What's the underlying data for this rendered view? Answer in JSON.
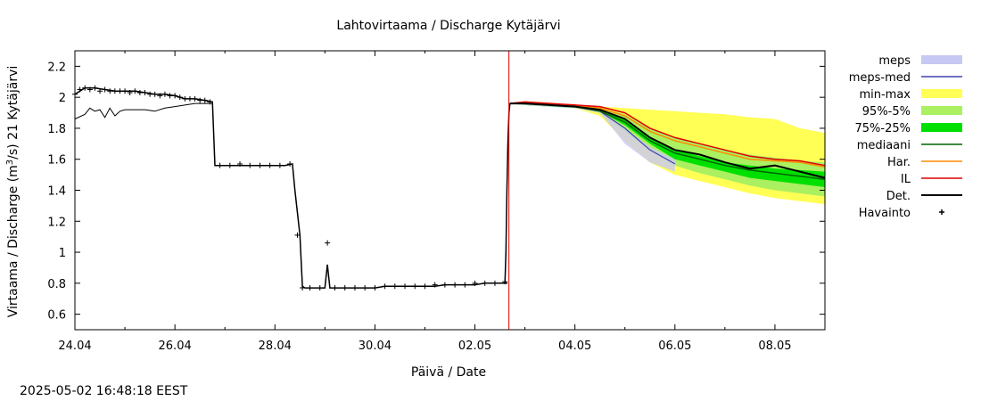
{
  "chart_data": {
    "type": "line",
    "title": "Lahtovirtaama / Discharge  Kytäjärvi",
    "ylabel_parts": {
      "pre": "Virtaama / Discharge (m",
      "sup": "3",
      "post": "/s)  21 Kytäjärvi"
    },
    "xlabel": "Päivä / Date",
    "timestamp": "2025-05-02 16:48:18 EEST",
    "xlim": [
      0,
      15
    ],
    "ylim": [
      0.5,
      2.3
    ],
    "x_unit": "days since 24.04",
    "yticks": [
      0.6,
      0.8,
      1,
      1.2,
      1.4,
      1.6,
      1.8,
      2,
      2.2
    ],
    "ytick_labels": [
      "0.6",
      "0.8",
      "1",
      "1.2",
      "1.4",
      "1.6",
      "1.8",
      "2",
      "2.2"
    ],
    "xticks": [
      0,
      2,
      4,
      6,
      8,
      10,
      12,
      14
    ],
    "xtick_labels": [
      "24.04",
      "26.04",
      "28.04",
      "30.04",
      "02.05",
      "04.05",
      "06.05",
      "08.05"
    ],
    "forecast_start": 8.68,
    "colors": {
      "meps": "#c8c8f5",
      "meps_med": "#4040b0",
      "minmax": "#ffff55",
      "p95_5": "#aaf060",
      "p75_25": "#00e000",
      "median": "#006400",
      "har": "#ff8c00",
      "il": "#e00000",
      "det": "#000000",
      "obs": "#000000",
      "now_line": "#dd0000"
    },
    "legend": [
      {
        "key": "meps",
        "label": "meps",
        "style": "band"
      },
      {
        "key": "meps_med",
        "label": "meps-med",
        "style": "line"
      },
      {
        "key": "minmax",
        "label": "min-max",
        "style": "band"
      },
      {
        "key": "p95_5",
        "label": "95%-5%",
        "style": "band"
      },
      {
        "key": "p75_25",
        "label": "75%-25%",
        "style": "band"
      },
      {
        "key": "median",
        "label": "mediaani",
        "style": "line"
      },
      {
        "key": "har",
        "label": "Har.",
        "style": "line"
      },
      {
        "key": "il",
        "label": "IL",
        "style": "line"
      },
      {
        "key": "det",
        "label": "Det.",
        "style": "thickline"
      },
      {
        "key": "obs",
        "label": "Havainto",
        "style": "plus"
      }
    ],
    "series": {
      "observations": {
        "x": [
          0.0,
          0.2,
          0.4,
          0.6,
          0.8,
          1.0,
          1.2,
          1.4,
          1.6,
          1.8,
          2.0,
          2.2,
          2.4,
          2.6,
          2.75,
          2.8,
          2.9,
          3.0,
          3.2,
          3.4,
          3.6,
          3.8,
          4.0,
          4.2,
          4.35,
          4.4,
          4.5,
          4.55,
          4.6,
          4.8,
          5.0,
          5.05,
          5.1,
          5.2,
          5.4,
          5.6,
          5.8,
          6.0,
          6.2,
          6.4,
          6.6,
          6.8,
          7.0,
          7.2,
          7.4,
          7.6,
          7.8,
          8.0,
          8.2,
          8.4,
          8.6,
          8.65
        ],
        "y": [
          2.02,
          2.06,
          2.06,
          2.05,
          2.04,
          2.04,
          2.04,
          2.03,
          2.02,
          2.02,
          2.01,
          1.99,
          1.99,
          1.98,
          1.97,
          1.56,
          1.56,
          1.56,
          1.56,
          1.56,
          1.56,
          1.56,
          1.56,
          1.56,
          1.57,
          1.4,
          1.11,
          0.78,
          0.77,
          0.77,
          0.77,
          0.92,
          0.77,
          0.77,
          0.77,
          0.77,
          0.77,
          0.77,
          0.78,
          0.78,
          0.78,
          0.78,
          0.78,
          0.78,
          0.79,
          0.79,
          0.79,
          0.79,
          0.8,
          0.8,
          0.8,
          0.8
        ]
      },
      "obs_markers": {
        "x": [
          0.0,
          0.1,
          0.2,
          0.3,
          0.4,
          0.5,
          0.6,
          0.7,
          0.8,
          0.9,
          1.0,
          1.1,
          1.2,
          1.3,
          1.4,
          1.5,
          1.6,
          1.7,
          1.8,
          1.9,
          2.0,
          2.1,
          2.2,
          2.3,
          2.4,
          2.5,
          2.6,
          2.7,
          2.9,
          3.1,
          3.3,
          3.5,
          3.7,
          3.9,
          4.1,
          4.3,
          4.45,
          4.55,
          4.7,
          4.9,
          5.05,
          5.2,
          5.4,
          5.6,
          5.8,
          6.0,
          6.2,
          6.4,
          6.6,
          6.8,
          7.0,
          7.2,
          7.4,
          7.6,
          7.8,
          8.0,
          8.2,
          8.4,
          8.6
        ],
        "y": [
          2.02,
          2.05,
          2.06,
          2.05,
          2.06,
          2.04,
          2.05,
          2.04,
          2.04,
          2.04,
          2.04,
          2.03,
          2.04,
          2.03,
          2.03,
          2.02,
          2.02,
          2.01,
          2.02,
          2.01,
          2.01,
          2.0,
          1.99,
          1.99,
          1.99,
          1.98,
          1.98,
          1.97,
          1.56,
          1.56,
          1.57,
          1.56,
          1.56,
          1.56,
          1.56,
          1.57,
          1.11,
          0.77,
          0.77,
          0.77,
          1.06,
          0.77,
          0.77,
          0.77,
          0.77,
          0.77,
          0.78,
          0.78,
          0.78,
          0.78,
          0.78,
          0.79,
          0.79,
          0.79,
          0.79,
          0.8,
          0.8,
          0.8,
          0.81
        ]
      },
      "history_lower": {
        "x": [
          0.0,
          0.2,
          0.3,
          0.4,
          0.5,
          0.6,
          0.7,
          0.8,
          0.9,
          1.0,
          1.2,
          1.4,
          1.6,
          1.8,
          2.0,
          2.2,
          2.4,
          2.6,
          2.75
        ],
        "y": [
          1.86,
          1.89,
          1.93,
          1.91,
          1.92,
          1.87,
          1.93,
          1.88,
          1.91,
          1.92,
          1.92,
          1.92,
          1.91,
          1.93,
          1.94,
          1.95,
          1.96,
          1.96,
          1.96
        ]
      },
      "rise": {
        "x": [
          8.6,
          8.62,
          8.64,
          8.66,
          8.68,
          8.7
        ],
        "y": [
          0.8,
          1.0,
          1.4,
          1.7,
          1.9,
          1.96
        ]
      },
      "forecast_x": [
        8.7,
        9.0,
        9.5,
        10.0,
        10.5,
        11.0,
        11.5,
        12.0,
        12.5,
        13.0,
        13.5,
        14.0,
        14.5,
        15.0
      ],
      "minmax_upper": [
        1.96,
        1.97,
        1.96,
        1.95,
        1.94,
        1.93,
        1.92,
        1.91,
        1.9,
        1.89,
        1.87,
        1.86,
        1.8,
        1.77
      ],
      "minmax_lower": [
        1.96,
        1.95,
        1.94,
        1.93,
        1.88,
        1.72,
        1.58,
        1.5,
        1.46,
        1.42,
        1.38,
        1.35,
        1.33,
        1.31
      ],
      "p95_upper": [
        1.96,
        1.96,
        1.96,
        1.95,
        1.93,
        1.89,
        1.8,
        1.74,
        1.7,
        1.66,
        1.63,
        1.61,
        1.59,
        1.58
      ],
      "p95_lower": [
        1.96,
        1.95,
        1.94,
        1.93,
        1.9,
        1.78,
        1.66,
        1.56,
        1.51,
        1.47,
        1.43,
        1.4,
        1.38,
        1.36
      ],
      "p75_upper": [
        1.96,
        1.96,
        1.95,
        1.94,
        1.92,
        1.86,
        1.74,
        1.66,
        1.62,
        1.58,
        1.56,
        1.54,
        1.53,
        1.52
      ],
      "p75_lower": [
        1.96,
        1.95,
        1.94,
        1.93,
        1.91,
        1.82,
        1.7,
        1.6,
        1.56,
        1.52,
        1.48,
        1.46,
        1.44,
        1.42
      ],
      "meps_upper": [
        1.96,
        1.96,
        1.95,
        1.94,
        1.92,
        1.8,
        1.68,
        1.6,
        null,
        null,
        null,
        null,
        null,
        null
      ],
      "meps_lower": [
        1.96,
        1.95,
        1.94,
        1.93,
        1.9,
        1.7,
        1.58,
        1.52,
        null,
        null,
        null,
        null,
        null,
        null
      ],
      "median": [
        1.96,
        1.96,
        1.95,
        1.94,
        1.91,
        1.84,
        1.72,
        1.64,
        1.6,
        1.56,
        1.53,
        1.51,
        1.49,
        1.47
      ],
      "meps_med": [
        1.96,
        1.96,
        1.95,
        1.94,
        1.91,
        1.8,
        1.66,
        1.57,
        null,
        null,
        null,
        null,
        null,
        null
      ],
      "har": [
        1.96,
        1.97,
        1.96,
        1.95,
        1.93,
        1.88,
        1.78,
        1.72,
        1.68,
        1.64,
        1.6,
        1.59,
        1.58,
        1.55
      ],
      "il": [
        1.96,
        1.97,
        1.96,
        1.95,
        1.94,
        1.9,
        1.8,
        1.74,
        1.7,
        1.66,
        1.62,
        1.6,
        1.59,
        1.56
      ],
      "det": [
        1.96,
        1.96,
        1.95,
        1.94,
        1.92,
        1.86,
        1.74,
        1.66,
        1.63,
        1.58,
        1.54,
        1.56,
        1.52,
        1.48
      ]
    }
  }
}
